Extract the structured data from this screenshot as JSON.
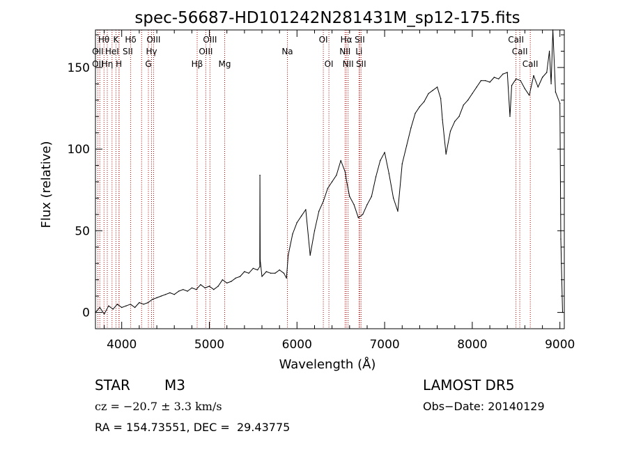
{
  "chart_data": {
    "type": "line",
    "title": "spec-56687-HD101242N281431M_sp12-175.fits",
    "xlabel": "Wavelength (Å)",
    "ylabel": "Flux (relative)",
    "xlim": [
      3700,
      9050
    ],
    "ylim": [
      -10,
      173
    ],
    "xticks": [
      4000,
      5000,
      6000,
      7000,
      8000,
      9000
    ],
    "yticks": [
      0,
      50,
      100,
      150
    ],
    "grid": false,
    "line_color": "#000000",
    "marker_color": "#aa0000",
    "spectrum": {
      "name": "",
      "x": [
        3700,
        3750,
        3800,
        3850,
        3900,
        3950,
        4000,
        4050,
        4100,
        4150,
        4200,
        4250,
        4300,
        4350,
        4400,
        4450,
        4500,
        4550,
        4600,
        4650,
        4700,
        4750,
        4800,
        4850,
        4900,
        4950,
        5000,
        5050,
        5100,
        5150,
        5200,
        5250,
        5300,
        5350,
        5400,
        5450,
        5500,
        5550,
        5575,
        5577,
        5580,
        5600,
        5650,
        5700,
        5750,
        5800,
        5850,
        5880,
        5900,
        5950,
        6000,
        6050,
        6100,
        6150,
        6200,
        6250,
        6300,
        6350,
        6400,
        6450,
        6500,
        6550,
        6560,
        6600,
        6650,
        6700,
        6750,
        6800,
        6850,
        6900,
        6950,
        7000,
        7050,
        7100,
        7150,
        7200,
        7250,
        7300,
        7350,
        7400,
        7450,
        7500,
        7550,
        7600,
        7640,
        7660,
        7700,
        7750,
        7800,
        7850,
        7900,
        7950,
        8000,
        8050,
        8100,
        8150,
        8200,
        8250,
        8300,
        8350,
        8400,
        8430,
        8450,
        8500,
        8550,
        8600,
        8650,
        8700,
        8750,
        8800,
        8850,
        8880,
        8900,
        8920,
        8950,
        9000,
        9010,
        9030
      ],
      "y": [
        0,
        3,
        -1,
        4,
        2,
        5,
        3,
        4,
        5,
        3,
        6,
        5,
        6,
        8,
        9,
        10,
        11,
        12,
        11,
        13,
        14,
        13,
        15,
        14,
        17,
        15,
        16,
        14,
        16,
        20,
        18,
        19,
        21,
        22,
        25,
        24,
        27,
        26,
        28,
        84,
        32,
        22,
        25,
        24,
        24,
        26,
        24,
        21,
        35,
        48,
        55,
        59,
        63,
        35,
        50,
        62,
        68,
        76,
        80,
        84,
        93,
        86,
        82,
        71,
        66,
        58,
        60,
        66,
        71,
        83,
        93,
        98,
        85,
        70,
        62,
        91,
        102,
        113,
        122,
        126,
        129,
        134,
        136,
        138,
        131,
        118,
        97,
        111,
        117,
        120,
        127,
        130,
        134,
        138,
        142,
        142,
        141,
        144,
        143,
        146,
        147,
        120,
        139,
        143,
        142,
        137,
        133,
        145,
        138,
        144,
        147,
        160,
        140,
        176,
        135,
        128,
        45,
        0
      ]
    },
    "marker_lines": [
      3727,
      3750,
      3798,
      3835,
      3889,
      3934,
      3968,
      3970,
      4102,
      4227,
      4304,
      4340,
      4363,
      4861,
      4959,
      5007,
      5175,
      5890,
      6300,
      6364,
      6548,
      6563,
      6583,
      6707,
      6716,
      6731,
      8498,
      8542,
      8662
    ],
    "line_labels": [
      {
        "text": "Hθ",
        "wavelength": 3795,
        "row": 1
      },
      {
        "text": "K",
        "wavelength": 3934,
        "row": 1
      },
      {
        "text": "Hδ",
        "wavelength": 4102,
        "row": 1
      },
      {
        "text": "OIII",
        "wavelength": 4363,
        "row": 1
      },
      {
        "text": "OIII",
        "wavelength": 5007,
        "row": 1
      },
      {
        "text": "OI",
        "wavelength": 6300,
        "row": 1
      },
      {
        "text": "Hα",
        "wavelength": 6563,
        "row": 1
      },
      {
        "text": "SII",
        "wavelength": 6716,
        "row": 1
      },
      {
        "text": "CaII",
        "wavelength": 8498,
        "row": 1
      },
      {
        "text": "OII",
        "wavelength": 3727,
        "row": 2
      },
      {
        "text": "HeI",
        "wavelength": 3889,
        "row": 2
      },
      {
        "text": "SII",
        "wavelength": 4069,
        "row": 2
      },
      {
        "text": "Hγ",
        "wavelength": 4340,
        "row": 2
      },
      {
        "text": "OIII",
        "wavelength": 4959,
        "row": 2
      },
      {
        "text": "Na",
        "wavelength": 5890,
        "row": 2
      },
      {
        "text": "NII",
        "wavelength": 6548,
        "row": 2
      },
      {
        "text": "Li",
        "wavelength": 6707,
        "row": 2
      },
      {
        "text": "CaII",
        "wavelength": 8542,
        "row": 2
      },
      {
        "text": "OII",
        "wavelength": 3727,
        "row": 3
      },
      {
        "text": "Hη",
        "wavelength": 3835,
        "row": 3
      },
      {
        "text": "H",
        "wavelength": 3968,
        "row": 3
      },
      {
        "text": "G",
        "wavelength": 4304,
        "row": 3
      },
      {
        "text": "Hβ",
        "wavelength": 4861,
        "row": 3
      },
      {
        "text": "Mg",
        "wavelength": 5175,
        "row": 3
      },
      {
        "text": "OI",
        "wavelength": 6364,
        "row": 3
      },
      {
        "text": "NII",
        "wavelength": 6583,
        "row": 3
      },
      {
        "text": "SII",
        "wavelength": 6731,
        "row": 3
      },
      {
        "text": "CaII",
        "wavelength": 8662,
        "row": 3
      }
    ]
  },
  "info": {
    "object_class": "STAR",
    "subclass": "M3",
    "survey": "LAMOST DR5",
    "cz": "cz = −20.7 ± 3.3 km/s",
    "obs_date": "Obs−Date: 20140129",
    "coords": "RA = 154.73551, DEC =  29.43775"
  }
}
